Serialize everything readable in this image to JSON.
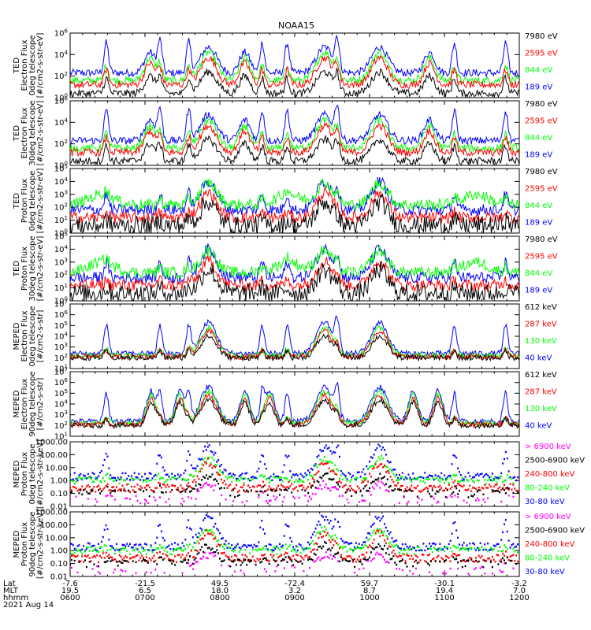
{
  "title": "NOAA15",
  "colors": {
    "black": "#000000",
    "red": "#ff0000",
    "green": "#00ff00",
    "blue": "#0000ff",
    "magenta": "#ff00ff"
  },
  "chart_data": [
    {
      "type": "line",
      "panel": "ted-electron-0deg",
      "ylabel": [
        "TED",
        "Electron Flux",
        "0deg telescope",
        "[#/cm2-s-str-eV]"
      ],
      "yscale": "log",
      "ylim": [
        1,
        1000000
      ],
      "yticks": [
        "10^0",
        "10^2",
        "10^4",
        "10^6"
      ],
      "series": [
        {
          "name": "7980 eV",
          "color": "#000000"
        },
        {
          "name": "2595 eV",
          "color": "#ff0000"
        },
        {
          "name": "844 eV",
          "color": "#00ff00"
        },
        {
          "name": "189 eV",
          "color": "#0000ff"
        }
      ]
    },
    {
      "type": "line",
      "panel": "ted-electron-30deg",
      "ylabel": [
        "TED",
        "Electron Flux",
        "30deg telescope",
        "[#/cm2-s-str-eV]"
      ],
      "yscale": "log",
      "ylim": [
        1,
        1000000
      ],
      "yticks": [
        "10^0",
        "10^2",
        "10^4",
        "10^6"
      ],
      "series": [
        {
          "name": "7980 eV",
          "color": "#000000"
        },
        {
          "name": "2595 eV",
          "color": "#ff0000"
        },
        {
          "name": "844 eV",
          "color": "#00ff00"
        },
        {
          "name": "189 eV",
          "color": "#0000ff"
        }
      ]
    },
    {
      "type": "line",
      "panel": "ted-proton-0deg",
      "ylabel": [
        "TED",
        "Proton Flux",
        "0deg telescope",
        "[#/cm2-s-str-eV]"
      ],
      "yscale": "log",
      "ylim": [
        1,
        100000
      ],
      "yticks": [
        "10^0",
        "10^1",
        "10^2",
        "10^3",
        "10^4",
        "10^5"
      ],
      "series": [
        {
          "name": "7980 eV",
          "color": "#000000"
        },
        {
          "name": "2595 eV",
          "color": "#ff0000"
        },
        {
          "name": "844 eV",
          "color": "#00ff00"
        },
        {
          "name": "189 eV",
          "color": "#0000ff"
        }
      ]
    },
    {
      "type": "line",
      "panel": "ted-proton-30deg",
      "ylabel": [
        "TED",
        "Proton Flux",
        "30deg telescope",
        "[#/cm2-s-str-eV]"
      ],
      "yscale": "log",
      "ylim": [
        1,
        100000
      ],
      "yticks": [
        "10^0",
        "10^1",
        "10^2",
        "10^3",
        "10^4",
        "10^5"
      ],
      "series": [
        {
          "name": "7980 eV",
          "color": "#000000"
        },
        {
          "name": "2595 eV",
          "color": "#ff0000"
        },
        {
          "name": "844 eV",
          "color": "#00ff00"
        },
        {
          "name": "189 eV",
          "color": "#0000ff"
        }
      ]
    },
    {
      "type": "line",
      "panel": "meped-electron-0deg",
      "ylabel": [
        "MEPED",
        "Electron Flux",
        "0deg telescope",
        "[#/cm2-s-str]"
      ],
      "yscale": "log",
      "ylim": [
        10,
        10000000
      ],
      "yticks": [
        "10^1",
        "10^2",
        "10^3",
        "10^4",
        "10^5",
        "10^6",
        "10^7"
      ],
      "series": [
        {
          "name": "612 keV",
          "color": "#000000"
        },
        {
          "name": "287 keV",
          "color": "#ff0000"
        },
        {
          "name": "130 keV",
          "color": "#00ff00"
        },
        {
          "name": "40 keV",
          "color": "#0000ff"
        }
      ]
    },
    {
      "type": "line",
      "panel": "meped-electron-90deg",
      "ylabel": [
        "MEPED",
        "Electron Flux",
        "90deg telescope",
        "[#/cm2-s-str]"
      ],
      "yscale": "log",
      "ylim": [
        10,
        10000000
      ],
      "yticks": [
        "10^1",
        "10^2",
        "10^3",
        "10^4",
        "10^5",
        "10^6",
        "10^7"
      ],
      "series": [
        {
          "name": "612 keV",
          "color": "#000000"
        },
        {
          "name": "287 keV",
          "color": "#ff0000"
        },
        {
          "name": "130 keV",
          "color": "#00ff00"
        },
        {
          "name": "40 keV",
          "color": "#0000ff"
        }
      ]
    },
    {
      "type": "scatter",
      "panel": "meped-proton-0deg",
      "ylabel": [
        "MEPED",
        "Proton Flux",
        "0deg telescope",
        "[#/cm2-s-str-keV]"
      ],
      "yscale": "log",
      "ylim": [
        0.01,
        1000
      ],
      "yticks": [
        "0.01",
        "0.10",
        "1.00",
        "10.00",
        "100.00",
        "1000.00"
      ],
      "series": [
        {
          "name": "> 6900 keV",
          "color": "#ff00ff"
        },
        {
          "name": "2500-6900 keV",
          "color": "#000000"
        },
        {
          "name": "240-800 keV",
          "color": "#ff0000"
        },
        {
          "name": "80-240 keV",
          "color": "#00ff00"
        },
        {
          "name": "30-80 keV",
          "color": "#0000ff"
        }
      ]
    },
    {
      "type": "scatter",
      "panel": "meped-proton-90deg",
      "ylabel": [
        "MEPED",
        "Proton Flux",
        "90deg telescope",
        "[#/cm2-s-str-keV]"
      ],
      "yscale": "log",
      "ylim": [
        0.01,
        1000
      ],
      "yticks": [
        "0.01",
        "0.10",
        "1.00",
        "10.00",
        "100.00",
        "1000.00"
      ],
      "series": [
        {
          "name": "> 6900 keV",
          "color": "#ff00ff"
        },
        {
          "name": "2500-6900 keV",
          "color": "#000000"
        },
        {
          "name": "240-800 keV",
          "color": "#ff0000"
        },
        {
          "name": "80-240 keV",
          "color": "#00ff00"
        },
        {
          "name": "30-80 keV",
          "color": "#0000ff"
        }
      ]
    }
  ],
  "x_axis": {
    "row_labels": [
      "Lat",
      "MLT",
      "hhmm",
      "2021 Aug 14"
    ],
    "ticks": [
      {
        "lat": "-7.6",
        "mlt": "19.5",
        "hhmm": "0600"
      },
      {
        "lat": "-21.5",
        "mlt": "6.5",
        "hhmm": "0700"
      },
      {
        "lat": "49.5",
        "mlt": "18.0",
        "hhmm": "0800"
      },
      {
        "lat": "-72.4",
        "mlt": "3.2",
        "hhmm": "0900"
      },
      {
        "lat": "59.7",
        "mlt": "8.7",
        "hhmm": "1000"
      },
      {
        "lat": "-30.1",
        "mlt": "19.4",
        "hhmm": "1100"
      },
      {
        "lat": "-3.2",
        "mlt": "7.0",
        "hhmm": "1200"
      }
    ]
  }
}
